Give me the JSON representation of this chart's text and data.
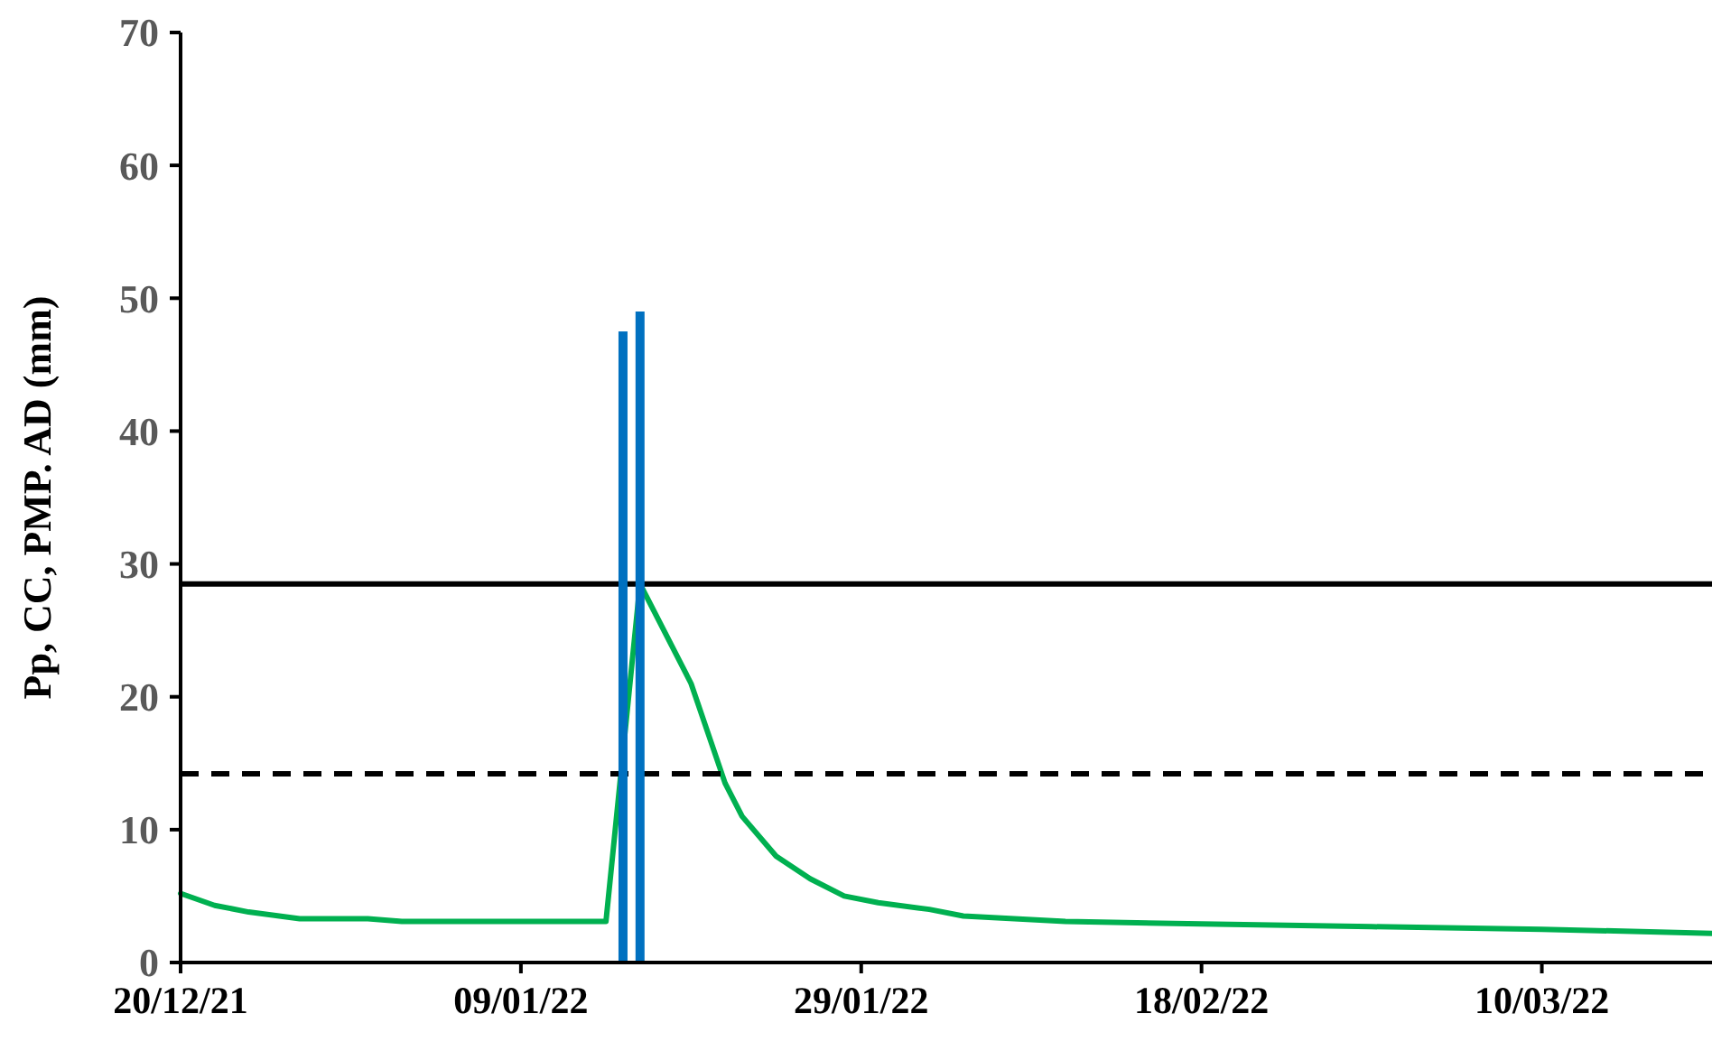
{
  "chart_data": {
    "type": "line",
    "ylabel": "Pp, CC, PMP. AD (mm)",
    "xlim": [
      "2021-12-20",
      "2022-03-20"
    ],
    "xticks": [
      {
        "value": "2021-12-20",
        "label": "20/12/21"
      },
      {
        "value": "2022-01-09",
        "label": "09/01/22"
      },
      {
        "value": "2022-01-29",
        "label": "29/01/22"
      },
      {
        "value": "2022-02-18",
        "label": "18/02/22"
      },
      {
        "value": "2022-03-10",
        "label": "10/03/22"
      }
    ],
    "ylim": [
      0,
      70
    ],
    "yticks": [
      0,
      10,
      20,
      30,
      40,
      50,
      60,
      70
    ],
    "grid": false,
    "series": [
      {
        "type": "bar",
        "color": "#0070c0",
        "x": [
          "2022-01-15",
          "2022-01-16"
        ],
        "values": [
          47.5,
          49
        ]
      },
      {
        "color": "#00b050",
        "x": [
          "2021-12-20",
          "2021-12-22",
          "2021-12-24",
          "2021-12-27",
          "2021-12-31",
          "2022-01-02",
          "2022-01-14",
          "2022-01-16",
          "2022-01-17",
          "2022-01-19",
          "2022-01-21",
          "2022-01-22",
          "2022-01-24",
          "2022-01-26",
          "2022-01-28",
          "2022-01-30",
          "2022-02-02",
          "2022-02-04",
          "2022-02-07",
          "2022-02-10",
          "2022-02-18",
          "2022-02-28",
          "2022-03-10",
          "2022-03-20"
        ],
        "values": [
          5.2,
          4.3,
          3.8,
          3.3,
          3.3,
          3.1,
          3.1,
          28.5,
          26,
          21,
          13.5,
          11,
          8,
          6.3,
          5,
          4.5,
          4,
          3.5,
          3.3,
          3.1,
          2.9,
          2.7,
          2.5,
          2.2
        ]
      }
    ],
    "ref_lines": [
      {
        "axis": "y",
        "value": 28.5,
        "color": "#000000",
        "line_style": "solid"
      },
      {
        "axis": "y",
        "value": 14.2,
        "color": "#000000",
        "line_style": "dashed"
      }
    ]
  }
}
